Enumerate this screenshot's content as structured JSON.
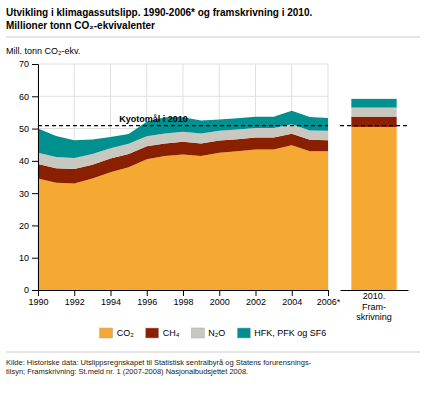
{
  "chart_data": {
    "type": "area",
    "title": "Utvikling i klimagassutslipp. 1990-2006* og framskrivning i 2010.",
    "subtitle": "Millioner tonn CO₂-ekvivalenter",
    "y_label": "Mill. tonn CO₂-ekv.",
    "stacked": true,
    "grid": true,
    "legend": "bottom",
    "x": [
      1990,
      1991,
      1992,
      1993,
      1994,
      1995,
      1996,
      1997,
      1998,
      1999,
      2000,
      2001,
      2002,
      2003,
      2004,
      2005,
      2006
    ],
    "xlim": [
      1990,
      2006
    ],
    "xticks": [
      1990,
      1992,
      1994,
      1996,
      1998,
      2000,
      2002,
      2004,
      {
        "value": 2006,
        "label": "2006*"
      }
    ],
    "ylim": [
      0,
      70
    ],
    "yticks": [
      0,
      10,
      20,
      30,
      40,
      50,
      60,
      70
    ],
    "series": [
      {
        "name": "CO₂",
        "color": "#F5A832",
        "values": [
          34.5,
          33.2,
          33.0,
          34.5,
          36.5,
          38.0,
          40.5,
          41.5,
          42.0,
          41.5,
          42.5,
          43.0,
          43.5,
          43.5,
          44.8,
          43.0,
          43.0
        ],
        "projection": 50.5
      },
      {
        "name": "CH₄",
        "color": "#8B2000",
        "values": [
          4.5,
          4.5,
          4.5,
          4.3,
          4.2,
          4.1,
          4.0,
          3.9,
          3.9,
          3.9,
          3.8,
          3.7,
          3.7,
          3.7,
          3.6,
          3.5,
          3.4
        ],
        "projection": 3.2
      },
      {
        "name": "N₂O",
        "color": "#C8C8C0",
        "values": [
          3.5,
          3.5,
          3.4,
          3.3,
          3.2,
          3.2,
          3.1,
          3.1,
          3.1,
          3.1,
          3.0,
          3.0,
          3.0,
          3.0,
          2.9,
          2.9,
          2.9
        ],
        "projection": 2.8
      },
      {
        "name": "HFK, PFK og SF6",
        "color": "#009090",
        "values": [
          7.5,
          6.5,
          5.5,
          4.5,
          3.5,
          3.0,
          4.5,
          5.0,
          4.5,
          4.0,
          3.5,
          3.5,
          3.5,
          3.5,
          4.2,
          4.2,
          4.0
        ],
        "projection": 2.7
      }
    ],
    "projection_label": "2010.\nFram-\nskrivning",
    "annotations": [
      {
        "type": "hline",
        "y": 50.9,
        "text": "Kyotomål i 2010"
      }
    ],
    "source": "Kilde: Historiske data: Utslippsregnskapet til Statistisk sentralbyrå og Statens forurensnings-\ntilsyn; Framskrivning: St.meld nr. 1 (2007-2008) Nasjonalbudsjettet 2008."
  }
}
